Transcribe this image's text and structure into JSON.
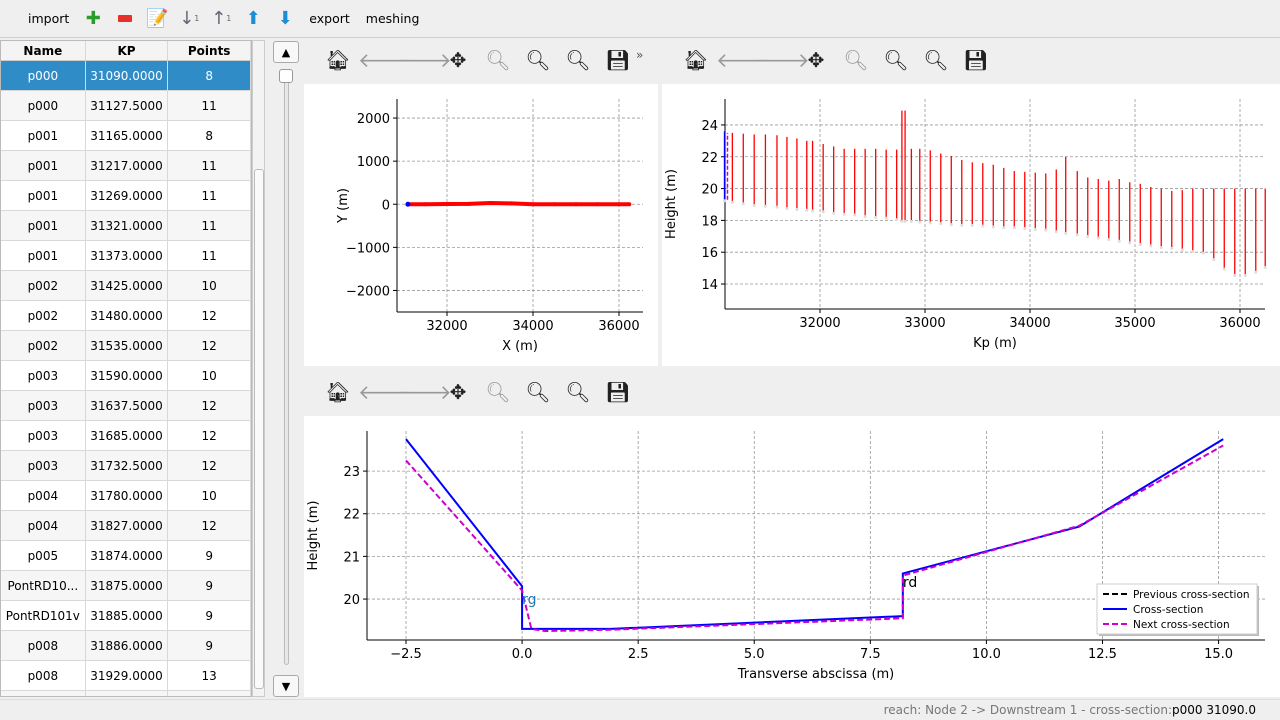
{
  "toolbar": {
    "import": "import",
    "add": "add-icon",
    "remove": "remove-icon",
    "edit": "edit-icon",
    "sort_asc": "sort-ascending-icon",
    "sort_desc": "sort-descending-icon",
    "move_up": "move-up-icon",
    "move_down": "move-down-icon",
    "export": "export",
    "meshing": "meshing"
  },
  "table": {
    "headers": [
      "Name",
      "KP",
      "Points"
    ],
    "selected_index": 0,
    "rows": [
      [
        "p000",
        "31090.0000",
        "8"
      ],
      [
        "p000",
        "31127.5000",
        "11"
      ],
      [
        "p001",
        "31165.0000",
        "8"
      ],
      [
        "p001",
        "31217.0000",
        "11"
      ],
      [
        "p001",
        "31269.0000",
        "11"
      ],
      [
        "p001",
        "31321.0000",
        "11"
      ],
      [
        "p001",
        "31373.0000",
        "11"
      ],
      [
        "p002",
        "31425.0000",
        "10"
      ],
      [
        "p002",
        "31480.0000",
        "12"
      ],
      [
        "p002",
        "31535.0000",
        "12"
      ],
      [
        "p003",
        "31590.0000",
        "10"
      ],
      [
        "p003",
        "31637.5000",
        "12"
      ],
      [
        "p003",
        "31685.0000",
        "12"
      ],
      [
        "p003",
        "31732.5000",
        "12"
      ],
      [
        "p004",
        "31780.0000",
        "10"
      ],
      [
        "p004",
        "31827.0000",
        "12"
      ],
      [
        "p005",
        "31874.0000",
        "9"
      ],
      [
        "PontRD10...",
        "31875.0000",
        "9"
      ],
      [
        "PontRD101v",
        "31885.0000",
        "9"
      ],
      [
        "p008",
        "31886.0000",
        "9"
      ],
      [
        "p008",
        "31929.0000",
        "13"
      ],
      [
        "",
        "",
        ""
      ]
    ]
  },
  "plot_toolbar": [
    "home-icon",
    "back-icon",
    "forward-icon",
    "pan-icon",
    "zoom-icon",
    "zoom-1-icon",
    "zoom-fit-icon",
    "save-icon"
  ],
  "overflow": "»",
  "status": {
    "prefix": "reach: Node 2 -> Downstream 1 - cross-section: ",
    "value": "p000 31090.0"
  },
  "chart_data": [
    {
      "type": "scatter",
      "xlabel": "X (m)",
      "ylabel": "Y (m)",
      "xlim": [
        30837,
        36558
      ],
      "ylim": [
        -2500,
        2442
      ],
      "xticks": [
        32000,
        34000,
        36000
      ],
      "yticks": [
        2000,
        1000,
        0,
        -1000,
        -2000
      ],
      "ytick_labels": [
        "2000",
        "1000",
        "0",
        "−1000",
        "−2000"
      ],
      "grid": true,
      "series": [
        {
          "color": "#ff0000",
          "x": [
            31090,
            31500,
            32000,
            32500,
            33000,
            33500,
            34000,
            34500,
            35000,
            35500,
            36000,
            36240
          ],
          "y": [
            0,
            0,
            5,
            10,
            30,
            20,
            0,
            0,
            0,
            0,
            0,
            0
          ]
        },
        {
          "color": "#0000ff",
          "x": [
            31090
          ],
          "y": [
            0
          ]
        }
      ]
    },
    {
      "type": "line",
      "xlabel": "Kp (m)",
      "ylabel": "Height (m)",
      "xlim": [
        31095,
        36238
      ],
      "ylim": [
        12.43,
        25.63
      ],
      "xticks": [
        32000,
        33000,
        34000,
        35000,
        36000
      ],
      "yticks": [
        14,
        16,
        18,
        20,
        22,
        24
      ],
      "grid": true,
      "color": "#ff0000",
      "current_color": "#0000ff",
      "next_color": "#cc00cc",
      "kp": [
        31090,
        31165,
        31269,
        31373,
        31480,
        31590,
        31685,
        31780,
        31874,
        31929,
        32030,
        32130,
        32230,
        32330,
        32430,
        32530,
        32630,
        32730,
        32780,
        32810,
        32870,
        32950,
        33050,
        33150,
        33250,
        33350,
        33450,
        33550,
        33650,
        33750,
        33850,
        33950,
        34050,
        34150,
        34250,
        34340,
        34450,
        34550,
        34650,
        34750,
        34850,
        34950,
        35050,
        35150,
        35250,
        35350,
        35450,
        35550,
        35650,
        35750,
        35850,
        35950,
        36050,
        36150,
        36240
      ],
      "zmax": [
        23.6,
        23.5,
        23.45,
        23.4,
        23.4,
        23.35,
        23.25,
        23.15,
        23.0,
        23.0,
        22.8,
        22.65,
        22.5,
        22.5,
        22.5,
        22.5,
        22.45,
        22.45,
        24.9,
        24.9,
        22.5,
        22.5,
        22.4,
        22.2,
        22.05,
        21.8,
        21.65,
        21.6,
        21.5,
        21.3,
        21.1,
        21.05,
        21.0,
        20.95,
        21.2,
        22.0,
        21.1,
        20.7,
        20.6,
        20.5,
        20.6,
        20.4,
        20.3,
        20.1,
        20.0,
        19.85,
        19.9,
        20.0,
        20.0,
        20.0,
        20.0,
        20.0,
        20.0,
        20.0,
        20.0
      ],
      "zmin": [
        19.3,
        19.2,
        19.1,
        19.0,
        18.95,
        18.9,
        18.8,
        18.75,
        18.7,
        18.65,
        18.6,
        18.5,
        18.45,
        18.4,
        18.3,
        18.25,
        18.2,
        18.1,
        18.0,
        18.0,
        18.0,
        17.95,
        17.9,
        17.85,
        17.8,
        17.75,
        17.75,
        17.7,
        17.65,
        17.6,
        17.6,
        17.55,
        17.5,
        17.45,
        17.35,
        17.25,
        17.15,
        17.05,
        16.95,
        16.85,
        16.75,
        16.65,
        16.55,
        16.45,
        16.35,
        16.3,
        16.2,
        16.1,
        16.0,
        15.6,
        15.0,
        14.6,
        14.6,
        14.8,
        15.1
      ]
    },
    {
      "type": "line",
      "xlabel": "Transverse abscissa (m)",
      "ylabel": "Height (m)",
      "xlim": [
        -3.34,
        16.0
      ],
      "ylim": [
        19.04,
        23.94
      ],
      "xticks": [
        -2.5,
        0,
        2.5,
        5,
        7.5,
        10,
        12.5,
        15
      ],
      "xtick_labels": [
        "−2.5",
        "0.0",
        "2.5",
        "5.0",
        "7.5",
        "10.0",
        "12.5",
        "15.0"
      ],
      "yticks": [
        20,
        21,
        22,
        23
      ],
      "grid": true,
      "legend": "bottom-right",
      "series": [
        {
          "name": "Previous cross-section",
          "color": "#000000",
          "style": "dashed",
          "x": [],
          "y": []
        },
        {
          "name": "Cross-section",
          "color": "#0000ff",
          "style": "solid",
          "x": [
            -2.5,
            0,
            0,
            1.9,
            8.2,
            8.2,
            12,
            15.1
          ],
          "y": [
            23.75,
            20.3,
            19.3,
            19.3,
            19.6,
            20.6,
            21.7,
            23.75
          ]
        },
        {
          "name": "Next cross-section",
          "color": "#cc00cc",
          "style": "dashed",
          "x": [
            -2.5,
            0,
            0.2,
            0.5,
            1.9,
            8.2,
            8.2,
            12,
            15.1
          ],
          "y": [
            23.25,
            20.2,
            19.3,
            19.25,
            19.28,
            19.55,
            20.55,
            21.72,
            23.6
          ]
        }
      ],
      "annotations": [
        {
          "text": "rg",
          "x": 0,
          "y": 20.0,
          "color": "#1f77b4"
        },
        {
          "text": "rd",
          "x": 8.2,
          "y": 20.4,
          "color": "#000000"
        }
      ]
    }
  ]
}
